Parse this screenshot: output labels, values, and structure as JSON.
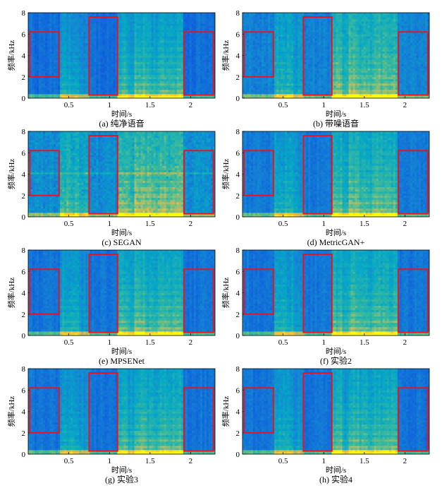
{
  "colors": {
    "box": "#e8141e",
    "axis": "#000000",
    "background": "#ffffff"
  },
  "chart_data": [
    {
      "type": "heatmap",
      "panel": "a",
      "caption": "(a) 纯净语音",
      "xlabel": "时间/s",
      "ylabel": "频率/kHz",
      "xticks": [
        0.5,
        1,
        1.5,
        2
      ],
      "yticks": [
        0,
        2,
        4,
        6,
        8
      ],
      "xlim": [
        0,
        2.3
      ],
      "ylim": [
        0,
        8
      ],
      "boxes": [
        [
          0.02,
          0.38,
          2.0,
          6.2
        ],
        [
          0.75,
          1.1,
          0.3,
          7.6
        ],
        [
          1.92,
          2.28,
          0.3,
          6.2
        ]
      ],
      "noise_level": 0.0
    },
    {
      "type": "heatmap",
      "panel": "b",
      "caption": "(b) 带噪语音",
      "xlabel": "时间/s",
      "ylabel": "频率/kHz",
      "xticks": [
        0.5,
        1,
        1.5,
        2
      ],
      "yticks": [
        0,
        2,
        4,
        6,
        8
      ],
      "xlim": [
        0,
        2.3
      ],
      "ylim": [
        0,
        8
      ],
      "boxes": [
        [
          0.02,
          0.38,
          2.0,
          6.2
        ],
        [
          0.75,
          1.1,
          0.3,
          7.6
        ],
        [
          1.92,
          2.28,
          0.3,
          6.2
        ]
      ],
      "noise_level": 1.0
    },
    {
      "type": "heatmap",
      "panel": "c",
      "caption": "(c) SEGAN",
      "xlabel": "时间/s",
      "ylabel": "频率/kHz",
      "xticks": [
        0.5,
        1,
        1.5,
        2
      ],
      "yticks": [
        0,
        2,
        4,
        6,
        8
      ],
      "xlim": [
        0,
        2.3
      ],
      "ylim": [
        0,
        8
      ],
      "boxes": [
        [
          0.02,
          0.38,
          2.0,
          6.2
        ],
        [
          0.75,
          1.1,
          0.3,
          7.6
        ],
        [
          1.92,
          2.28,
          0.3,
          6.2
        ]
      ],
      "noise_level": 1.6
    },
    {
      "type": "heatmap",
      "panel": "d",
      "caption": "(d) MetricGAN+",
      "xlabel": "时间/s",
      "ylabel": "频率/kHz",
      "xticks": [
        0.5,
        1,
        1.5,
        2
      ],
      "yticks": [
        0,
        2,
        4,
        6,
        8
      ],
      "xlim": [
        0,
        2.3
      ],
      "ylim": [
        0,
        8
      ],
      "boxes": [
        [
          0.02,
          0.38,
          2.0,
          6.2
        ],
        [
          0.75,
          1.1,
          0.3,
          7.6
        ],
        [
          1.92,
          2.28,
          0.3,
          6.2
        ]
      ],
      "noise_level": 0.6
    },
    {
      "type": "heatmap",
      "panel": "e",
      "caption": "(e) MPSENet",
      "xlabel": "时间/s",
      "ylabel": "频率/kHz",
      "xticks": [
        0.5,
        1,
        1.5,
        2
      ],
      "yticks": [
        0,
        2,
        4,
        6,
        8
      ],
      "xlim": [
        0,
        2.3
      ],
      "ylim": [
        0,
        8
      ],
      "boxes": [
        [
          0.02,
          0.38,
          2.0,
          6.2
        ],
        [
          0.75,
          1.1,
          0.3,
          7.6
        ],
        [
          1.92,
          2.28,
          0.3,
          6.2
        ]
      ],
      "noise_level": 0.3
    },
    {
      "type": "heatmap",
      "panel": "f",
      "caption": "(f) 实验2",
      "xlabel": "时间/s",
      "ylabel": "频率/kHz",
      "xticks": [
        0.5,
        1,
        1.5,
        2
      ],
      "yticks": [
        0,
        2,
        4,
        6,
        8
      ],
      "xlim": [
        0,
        2.3
      ],
      "ylim": [
        0,
        8
      ],
      "boxes": [
        [
          0.02,
          0.38,
          2.0,
          6.2
        ],
        [
          0.75,
          1.1,
          0.3,
          7.6
        ],
        [
          1.92,
          2.28,
          0.3,
          6.2
        ]
      ],
      "noise_level": 0.4
    },
    {
      "type": "heatmap",
      "panel": "g",
      "caption": "(g) 实验3",
      "xlabel": "时间/s",
      "ylabel": "频率/kHz",
      "xticks": [
        0.5,
        1,
        1.5,
        2
      ],
      "yticks": [
        0,
        2,
        4,
        6,
        8
      ],
      "xlim": [
        0,
        2.3
      ],
      "ylim": [
        0,
        8
      ],
      "boxes": [
        [
          0.02,
          0.38,
          2.0,
          6.2
        ],
        [
          0.75,
          1.1,
          0.3,
          7.6
        ],
        [
          1.92,
          2.28,
          0.3,
          6.2
        ]
      ],
      "noise_level": 0.3
    },
    {
      "type": "heatmap",
      "panel": "h",
      "caption": "(h) 实验4",
      "xlabel": "时间/s",
      "ylabel": "频率/kHz",
      "xticks": [
        0.5,
        1,
        1.5,
        2
      ],
      "yticks": [
        0,
        2,
        4,
        6,
        8
      ],
      "xlim": [
        0,
        2.3
      ],
      "ylim": [
        0,
        8
      ],
      "boxes": [
        [
          0.02,
          0.38,
          2.0,
          6.2
        ],
        [
          0.75,
          1.1,
          0.3,
          7.6
        ],
        [
          1.92,
          2.28,
          0.3,
          6.2
        ]
      ],
      "noise_level": 0.3
    }
  ]
}
